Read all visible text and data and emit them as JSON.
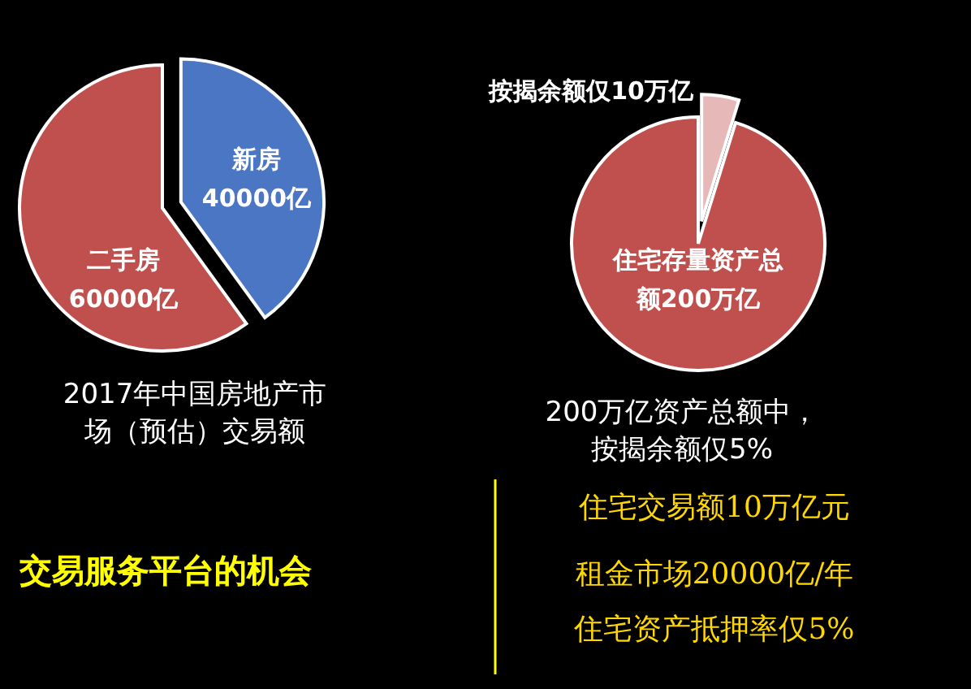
{
  "chart_data": [
    {
      "type": "pie",
      "categories": [
        "新房",
        "二手房"
      ],
      "values": [
        40000,
        60000
      ],
      "value_labels": [
        "40000亿",
        "60000亿"
      ],
      "colors": [
        "#4a76c4",
        "#c0504d"
      ],
      "annotations": [
        "2017年中国房地产市场（预估）交易额"
      ]
    },
    {
      "type": "pie",
      "categories": [
        "按揭余额仅",
        "住宅存量资产总额"
      ],
      "values": [
        10,
        200
      ],
      "value_labels": [
        "10万亿",
        "200万亿"
      ],
      "colors": [
        "#e6b9b8",
        "#c0504d"
      ],
      "annotations": [
        "200万亿资产总额中，按揭余额仅5%"
      ]
    },
    {
      "type": "other",
      "title": "交易服务平台的机会",
      "annotations": [
        "住宅交易额10万亿元",
        "租金市场20000亿/年",
        "住宅资产抵押率仅5%"
      ]
    }
  ]
}
